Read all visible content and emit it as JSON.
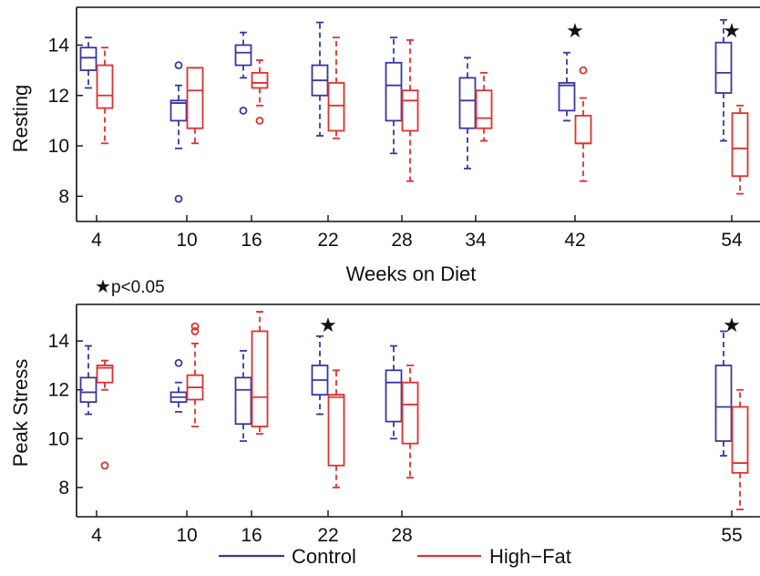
{
  "colors": {
    "control": "#3a37a0",
    "high_fat": "#e03030",
    "axis": "#111111"
  },
  "legend": {
    "control_label": "Control",
    "high_fat_label": "High−Fat"
  },
  "significance_note": "p<0.05",
  "chart_data": [
    {
      "type": "box",
      "ylabel": "Resting",
      "xlabel": "Weeks on Diet",
      "ylim": [
        7,
        15.5
      ],
      "yticks": [
        8,
        10,
        12,
        14
      ],
      "grid": false,
      "categories": [
        "4",
        "10",
        "16",
        "22",
        "28",
        "34",
        "42",
        "54"
      ],
      "significant": [
        "42",
        "54"
      ],
      "series": [
        {
          "name": "Control",
          "boxes": [
            {
              "x": "4",
              "whisker_low": 12.3,
              "q1": 13.0,
              "median": 13.5,
              "q3": 13.9,
              "whisker_high": 14.3,
              "outliers": []
            },
            {
              "x": "10",
              "whisker_low": 9.9,
              "q1": 11.0,
              "median": 11.7,
              "q3": 11.8,
              "whisker_high": 12.4,
              "outliers": [
                13.2,
                7.9
              ]
            },
            {
              "x": "16",
              "whisker_low": 12.7,
              "q1": 13.2,
              "median": 13.7,
              "q3": 14.0,
              "whisker_high": 14.5,
              "outliers": [
                11.4
              ]
            },
            {
              "x": "22",
              "whisker_low": 10.4,
              "q1": 12.0,
              "median": 12.6,
              "q3": 13.2,
              "whisker_high": 14.9,
              "outliers": []
            },
            {
              "x": "28",
              "whisker_low": 9.7,
              "q1": 11.0,
              "median": 12.4,
              "q3": 13.3,
              "whisker_high": 14.3,
              "outliers": []
            },
            {
              "x": "34",
              "whisker_low": 9.1,
              "q1": 10.7,
              "median": 11.8,
              "q3": 12.7,
              "whisker_high": 13.5,
              "outliers": []
            },
            {
              "x": "42",
              "whisker_low": 11.0,
              "q1": 11.4,
              "median": 12.4,
              "q3": 12.5,
              "whisker_high": 13.7,
              "outliers": []
            },
            {
              "x": "54",
              "whisker_low": 10.2,
              "q1": 12.1,
              "median": 12.9,
              "q3": 14.1,
              "whisker_high": 15.0,
              "outliers": []
            }
          ]
        },
        {
          "name": "High−Fat",
          "boxes": [
            {
              "x": "4",
              "whisker_low": 10.1,
              "q1": 11.5,
              "median": 12.0,
              "q3": 13.2,
              "whisker_high": 13.9,
              "outliers": []
            },
            {
              "x": "10",
              "whisker_low": 10.1,
              "q1": 10.7,
              "median": 12.2,
              "q3": 13.1,
              "whisker_high": 13.1,
              "outliers": []
            },
            {
              "x": "16",
              "whisker_low": 11.6,
              "q1": 12.3,
              "median": 12.5,
              "q3": 12.9,
              "whisker_high": 13.4,
              "outliers": [
                11.0
              ]
            },
            {
              "x": "22",
              "whisker_low": 10.3,
              "q1": 10.6,
              "median": 11.6,
              "q3": 12.5,
              "whisker_high": 14.3,
              "outliers": []
            },
            {
              "x": "28",
              "whisker_low": 8.6,
              "q1": 10.6,
              "median": 11.8,
              "q3": 12.2,
              "whisker_high": 14.2,
              "outliers": []
            },
            {
              "x": "34",
              "whisker_low": 10.2,
              "q1": 10.7,
              "median": 11.1,
              "q3": 12.2,
              "whisker_high": 12.9,
              "outliers": []
            },
            {
              "x": "42",
              "whisker_low": 8.6,
              "q1": 10.1,
              "median": 10.1,
              "q3": 11.2,
              "whisker_high": 11.9,
              "outliers": [
                13.0
              ]
            },
            {
              "x": "54",
              "whisker_low": 8.1,
              "q1": 8.8,
              "median": 9.9,
              "q3": 11.3,
              "whisker_high": 11.6,
              "outliers": []
            }
          ]
        }
      ]
    },
    {
      "type": "box",
      "ylabel": "Peak Stress",
      "xlabel": "",
      "ylim": [
        6.8,
        15.5
      ],
      "yticks": [
        8,
        10,
        12,
        14
      ],
      "grid": false,
      "categories": [
        "4",
        "10",
        "16",
        "22",
        "28",
        "55"
      ],
      "significant": [
        "22",
        "55"
      ],
      "series": [
        {
          "name": "Control",
          "boxes": [
            {
              "x": "4",
              "whisker_low": 11.0,
              "q1": 11.5,
              "median": 11.9,
              "q3": 12.5,
              "whisker_high": 13.8,
              "outliers": []
            },
            {
              "x": "10",
              "whisker_low": 11.1,
              "q1": 11.5,
              "median": 11.7,
              "q3": 11.9,
              "whisker_high": 12.3,
              "outliers": [
                13.1
              ]
            },
            {
              "x": "16",
              "whisker_low": 9.9,
              "q1": 10.6,
              "median": 12.0,
              "q3": 12.5,
              "whisker_high": 13.6,
              "outliers": []
            },
            {
              "x": "22",
              "whisker_low": 11.0,
              "q1": 11.8,
              "median": 12.4,
              "q3": 13.0,
              "whisker_high": 14.2,
              "outliers": []
            },
            {
              "x": "28",
              "whisker_low": 10.0,
              "q1": 10.7,
              "median": 12.3,
              "q3": 12.8,
              "whisker_high": 13.8,
              "outliers": []
            },
            {
              "x": "55",
              "whisker_low": 9.3,
              "q1": 9.9,
              "median": 11.3,
              "q3": 13.0,
              "whisker_high": 14.4,
              "outliers": []
            }
          ]
        },
        {
          "name": "High−Fat",
          "boxes": [
            {
              "x": "4",
              "whisker_low": 12.0,
              "q1": 12.3,
              "median": 12.9,
              "q3": 13.0,
              "whisker_high": 13.2,
              "outliers": [
                8.9
              ]
            },
            {
              "x": "10",
              "whisker_low": 10.5,
              "q1": 11.6,
              "median": 12.1,
              "q3": 12.6,
              "whisker_high": 13.9,
              "outliers": [
                14.6,
                14.4
              ]
            },
            {
              "x": "16",
              "whisker_low": 10.2,
              "q1": 10.5,
              "median": 11.7,
              "q3": 14.4,
              "whisker_high": 15.2,
              "outliers": []
            },
            {
              "x": "22",
              "whisker_low": 8.0,
              "q1": 8.9,
              "median": 11.7,
              "q3": 11.8,
              "whisker_high": 12.8,
              "outliers": []
            },
            {
              "x": "28",
              "whisker_low": 8.4,
              "q1": 9.8,
              "median": 11.4,
              "q3": 12.3,
              "whisker_high": 13.0,
              "outliers": []
            },
            {
              "x": "55",
              "whisker_low": 7.1,
              "q1": 8.6,
              "median": 9.0,
              "q3": 11.3,
              "whisker_high": 12.0,
              "outliers": []
            }
          ]
        }
      ]
    }
  ]
}
